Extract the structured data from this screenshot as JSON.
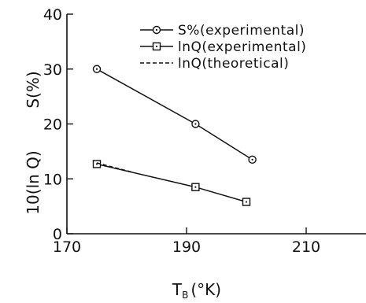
{
  "chart_data": {
    "type": "line",
    "title": "",
    "xlabel": {
      "main": "T",
      "sub": "B",
      "unit": "(°K)"
    },
    "ylabel_primary": "S(%)",
    "ylabel_secondary": "10(ln Q)",
    "xlim": [
      170,
      220
    ],
    "ylim": [
      0,
      40
    ],
    "x_ticks": [
      170,
      190,
      210
    ],
    "y_ticks": [
      0,
      10,
      20,
      30,
      40
    ],
    "grid": false,
    "legend_position": "top-right",
    "series": [
      {
        "name": "S%(experimental)",
        "marker": "circle-dot",
        "line": "solid",
        "x": [
          175,
          191.5,
          201
        ],
        "y": [
          30,
          20,
          13.5
        ]
      },
      {
        "name": "lnQ(experimental)",
        "marker": "square-dot",
        "line": "solid",
        "x": [
          175,
          191.5,
          200
        ],
        "y": [
          12.7,
          8.5,
          5.8
        ]
      },
      {
        "name": "lnQ(theoretical)",
        "marker": "none",
        "line": "dashed",
        "x": [
          175,
          181
        ],
        "y": [
          12.9,
          11.2
        ]
      }
    ]
  }
}
